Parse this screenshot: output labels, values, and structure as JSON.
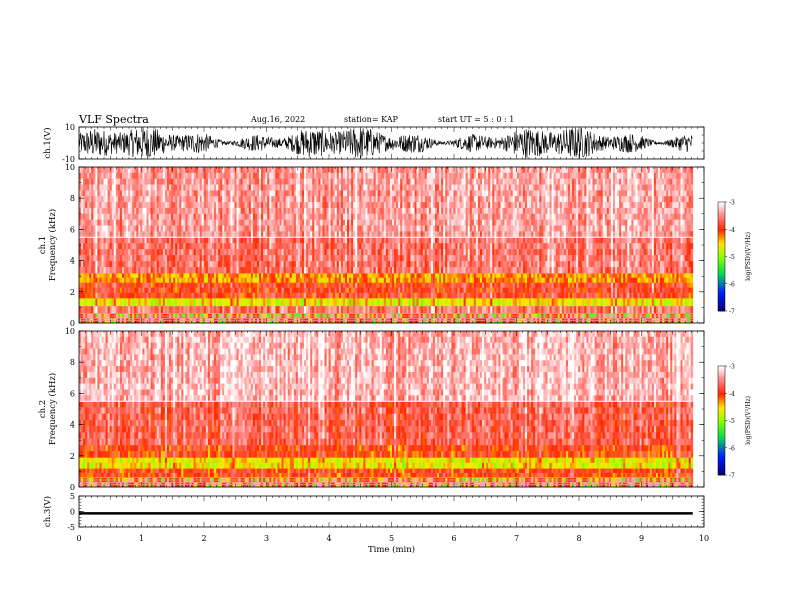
{
  "header": {
    "title": "VLF Spectra",
    "date": "Aug.16, 2022",
    "station": "station= KAP",
    "start": "start  UT =   5 : 0  : 1"
  },
  "chart_data": [
    {
      "type": "line",
      "name": "ch1-waveform",
      "ylabel": "ch.1(V)",
      "ylim": [
        -10,
        10
      ],
      "yticks": [
        "10",
        "-10"
      ],
      "xlim": [
        0,
        10
      ],
      "data_end_min": 9.82
    },
    {
      "type": "heatmap",
      "name": "ch1-spectrogram",
      "ylabel": "ch.1\nFrequency (kHz)",
      "ylim": [
        0,
        10
      ],
      "yticks": [
        "0",
        "2",
        "4",
        "6",
        "8",
        "10"
      ],
      "xlim": [
        0,
        10
      ],
      "data_end_min": 9.82,
      "bands_khz": [
        {
          "from": 0,
          "to": 0.6,
          "level": "mixed lines"
        },
        {
          "from": 0.6,
          "to": 1.1,
          "level": -3.6
        },
        {
          "from": 1.1,
          "to": 1.6,
          "level": -4.6
        },
        {
          "from": 1.6,
          "to": 2.6,
          "level": -3.9
        },
        {
          "from": 2.6,
          "to": 3.2,
          "level": -4.3
        },
        {
          "from": 3.2,
          "to": 5.5,
          "level": -3.6
        },
        {
          "from": 5.5,
          "to": 10,
          "level": -3.4
        }
      ],
      "colorbar": {
        "label": "log(PSD)(V²/Hz)",
        "min": -7,
        "max": -3,
        "ticks": [
          "-3",
          "-4",
          "-5",
          "-6",
          "-7"
        ]
      }
    },
    {
      "type": "heatmap",
      "name": "ch2-spectrogram",
      "ylabel": "ch.2\nFrequency (kHz)",
      "ylim": [
        0,
        10
      ],
      "yticks": [
        "0",
        "2",
        "4",
        "6",
        "8",
        "10"
      ],
      "xlim": [
        0,
        10
      ],
      "data_end_min": 9.82,
      "bands_khz": [
        {
          "from": 0,
          "to": 0.6,
          "level": "mixed lines"
        },
        {
          "from": 0.6,
          "to": 1.2,
          "level": -4.0
        },
        {
          "from": 1.2,
          "to": 1.9,
          "level": -4.6
        },
        {
          "from": 1.9,
          "to": 2.7,
          "level": -4.0
        },
        {
          "from": 2.7,
          "to": 5.5,
          "level": -3.7
        },
        {
          "from": 5.5,
          "to": 10,
          "level": -3.3
        }
      ],
      "colorbar": {
        "label": "log(PSD)(V²/Hz)",
        "min": -7,
        "max": -3,
        "ticks": [
          "-3",
          "-4",
          "-5",
          "-6",
          "-7"
        ]
      }
    },
    {
      "type": "line",
      "name": "ch3-waveform",
      "ylabel": "ch.3(V)",
      "ylim": [
        -5,
        5
      ],
      "yticks": [
        "5",
        "0",
        "-5"
      ],
      "xlim": [
        0,
        10
      ],
      "data_end_min": 9.82,
      "band": [
        -1.0,
        -0.2
      ],
      "xlabel": "Time (min)",
      "xticks": [
        "0",
        "1",
        "2",
        "3",
        "4",
        "5",
        "6",
        "7",
        "8",
        "9",
        "10"
      ]
    }
  ],
  "colors": {
    "axis": "#000000",
    "background": "#ffffff"
  }
}
